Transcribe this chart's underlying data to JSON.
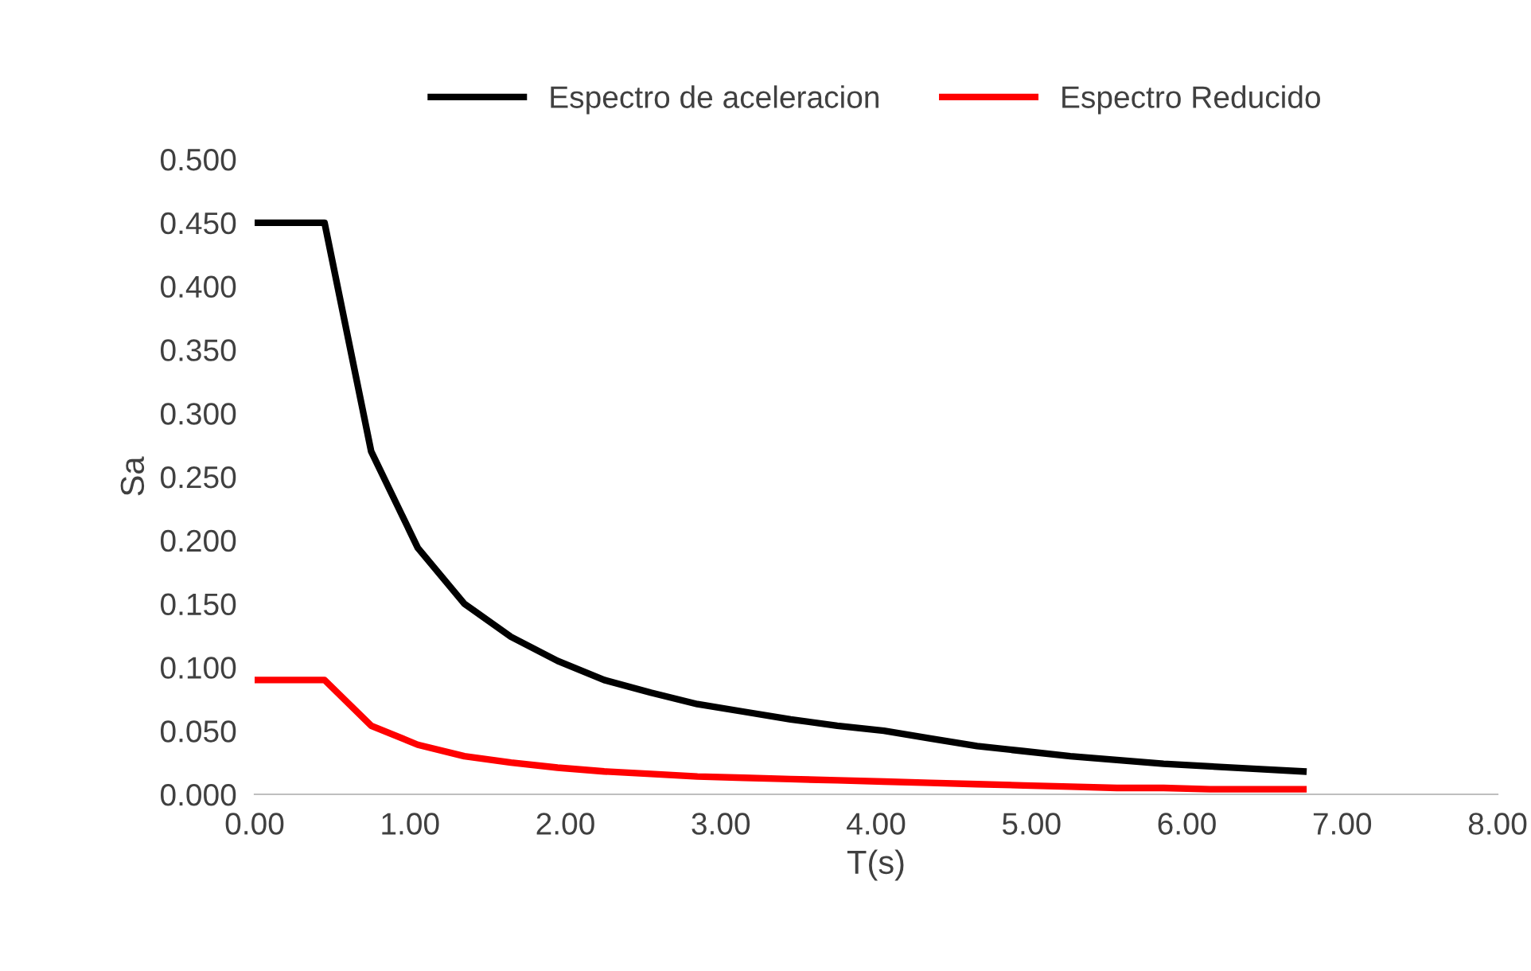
{
  "chart_data": {
    "type": "line",
    "xlabel": "T(s)",
    "ylabel": "Sa",
    "x": [
      0,
      0.45,
      0.75,
      1.05,
      1.35,
      1.65,
      1.95,
      2.25,
      2.55,
      2.85,
      3.15,
      3.45,
      3.75,
      4.05,
      4.35,
      4.65,
      4.95,
      5.25,
      5.55,
      5.85,
      6.15,
      6.45,
      6.75
    ],
    "series": [
      {
        "name": "Espectro de aceleracion",
        "color": "#000000",
        "values": [
          0.45,
          0.45,
          0.27,
          0.194,
          0.15,
          0.124,
          0.105,
          0.09,
          0.08,
          0.071,
          0.065,
          0.059,
          0.054,
          0.05,
          0.044,
          0.038,
          0.034,
          0.03,
          0.027,
          0.024,
          0.022,
          0.02,
          0.018
        ]
      },
      {
        "name": "Espectro Reducido",
        "color": "#ff0000",
        "values": [
          0.09,
          0.09,
          0.054,
          0.039,
          0.03,
          0.025,
          0.021,
          0.018,
          0.016,
          0.014,
          0.013,
          0.012,
          0.011,
          0.01,
          0.009,
          0.008,
          0.007,
          0.006,
          0.005,
          0.005,
          0.004,
          0.004,
          0.004
        ]
      }
    ],
    "xlim": [
      0,
      8
    ],
    "xticks": [
      {
        "value": 0,
        "label": "0.00"
      },
      {
        "value": 1,
        "label": "1.00"
      },
      {
        "value": 2,
        "label": "2.00"
      },
      {
        "value": 3,
        "label": "3.00"
      },
      {
        "value": 4,
        "label": "4.00"
      },
      {
        "value": 5,
        "label": "5.00"
      },
      {
        "value": 6,
        "label": "6.00"
      },
      {
        "value": 7,
        "label": "7.00"
      },
      {
        "value": 8,
        "label": "8.00"
      }
    ],
    "ylim": [
      0,
      0.5
    ],
    "yticks": [
      {
        "value": 0,
        "label": "0.000"
      },
      {
        "value": 0.05,
        "label": "0.050"
      },
      {
        "value": 0.1,
        "label": "0.100"
      },
      {
        "value": 0.15,
        "label": "0.150"
      },
      {
        "value": 0.2,
        "label": "0.200"
      },
      {
        "value": 0.25,
        "label": "0.250"
      },
      {
        "value": 0.3,
        "label": "0.300"
      },
      {
        "value": 0.35,
        "label": "0.350"
      },
      {
        "value": 0.4,
        "label": "0.400"
      },
      {
        "value": 0.45,
        "label": "0.450"
      },
      {
        "value": 0.5,
        "label": "0.500"
      }
    ],
    "legend": "top",
    "grid": false,
    "marker": "none",
    "line_style": "solid"
  }
}
